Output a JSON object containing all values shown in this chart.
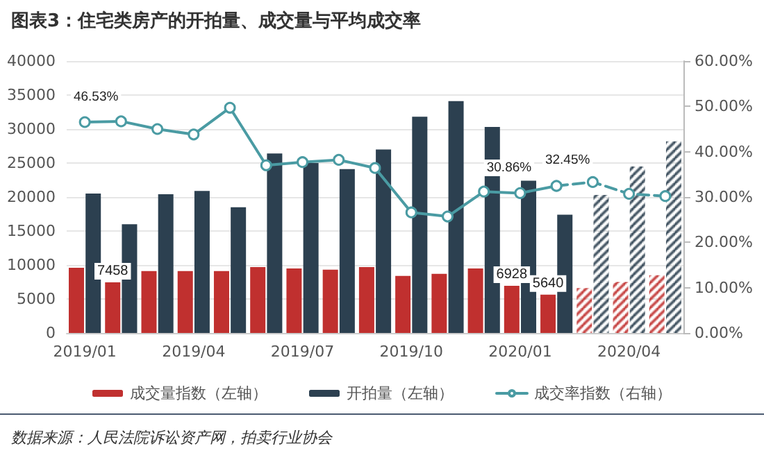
{
  "chart_data": {
    "type": "bar",
    "title": "图表3：住宅类房产的开拍量、成交量与平均成交率",
    "categories": [
      "2019/01",
      null,
      null,
      "2019/04",
      null,
      null,
      "2019/07",
      null,
      null,
      "2019/10",
      null,
      null,
      "2020/01",
      null,
      null,
      "2020/04",
      null
    ],
    "series": [
      {
        "name": "成交量指数（左轴）",
        "color": "#c0302f",
        "values": [
          9600,
          7458,
          9100,
          9100,
          9100,
          9700,
          9500,
          9300,
          9700,
          8400,
          8700,
          9500,
          6928,
          5640,
          null,
          null,
          null
        ],
        "value_labels": [
          null,
          "7458",
          null,
          null,
          null,
          null,
          null,
          null,
          null,
          null,
          null,
          null,
          "6928",
          "5640",
          null,
          null,
          null
        ]
      },
      {
        "name": "开拍量（左轴）",
        "color": "#2c4050",
        "values": [
          20500,
          16000,
          20400,
          20900,
          18500,
          26400,
          25000,
          24100,
          27000,
          31800,
          34100,
          30300,
          22400,
          17400,
          null,
          null,
          null
        ]
      },
      {
        "color": "#c0302f",
        "line_style": "dashed",
        "values": [
          null,
          null,
          null,
          null,
          null,
          null,
          null,
          null,
          null,
          null,
          null,
          null,
          null,
          null,
          6600,
          7500,
          8500
        ]
      },
      {
        "color": "#2c4050",
        "line_style": "dashed",
        "values": [
          null,
          null,
          null,
          null,
          null,
          null,
          null,
          null,
          null,
          null,
          null,
          null,
          null,
          null,
          20300,
          24500,
          28200
        ]
      },
      {
        "name": "成交率指数（右轴）",
        "type": "line",
        "axis": "y2",
        "color": "#4a9ba3",
        "line_style": "solid",
        "values": [
          46.53,
          46.7,
          45.0,
          43.8,
          49.7,
          37.0,
          37.7,
          38.2,
          36.4,
          26.6,
          25.7,
          31.2,
          30.86,
          32.45,
          null,
          null,
          null
        ],
        "value_labels": [
          "46.53%",
          null,
          null,
          null,
          null,
          null,
          null,
          null,
          null,
          null,
          null,
          null,
          "30.86%",
          "32.45%",
          null,
          null,
          null
        ]
      },
      {
        "type": "line",
        "axis": "y2",
        "color": "#4a9ba3",
        "line_style": "dashed",
        "values": [
          null,
          null,
          null,
          null,
          null,
          null,
          null,
          null,
          null,
          null,
          null,
          null,
          null,
          32.45,
          33.3,
          30.7,
          30.2
        ]
      }
    ],
    "ylim": [
      0,
      40000
    ],
    "yticks": [
      0,
      5000,
      10000,
      15000,
      20000,
      25000,
      30000,
      35000,
      40000
    ],
    "y2lim": [
      0,
      60
    ],
    "y2ticks": [
      {
        "value": 0,
        "label": "0.00%"
      },
      {
        "value": 10,
        "label": "10.00%"
      },
      {
        "value": 20,
        "label": "20.00%"
      },
      {
        "value": 30,
        "label": "30.00%"
      },
      {
        "value": 40,
        "label": "40.00%"
      },
      {
        "value": 50,
        "label": "50.00%"
      },
      {
        "value": 60,
        "label": "60.00%"
      }
    ],
    "grid": "y",
    "legend": "bottom",
    "marker": "circle",
    "annotations": [
      "数据来源：人民法院诉讼资产网，拍卖行业协会"
    ]
  }
}
